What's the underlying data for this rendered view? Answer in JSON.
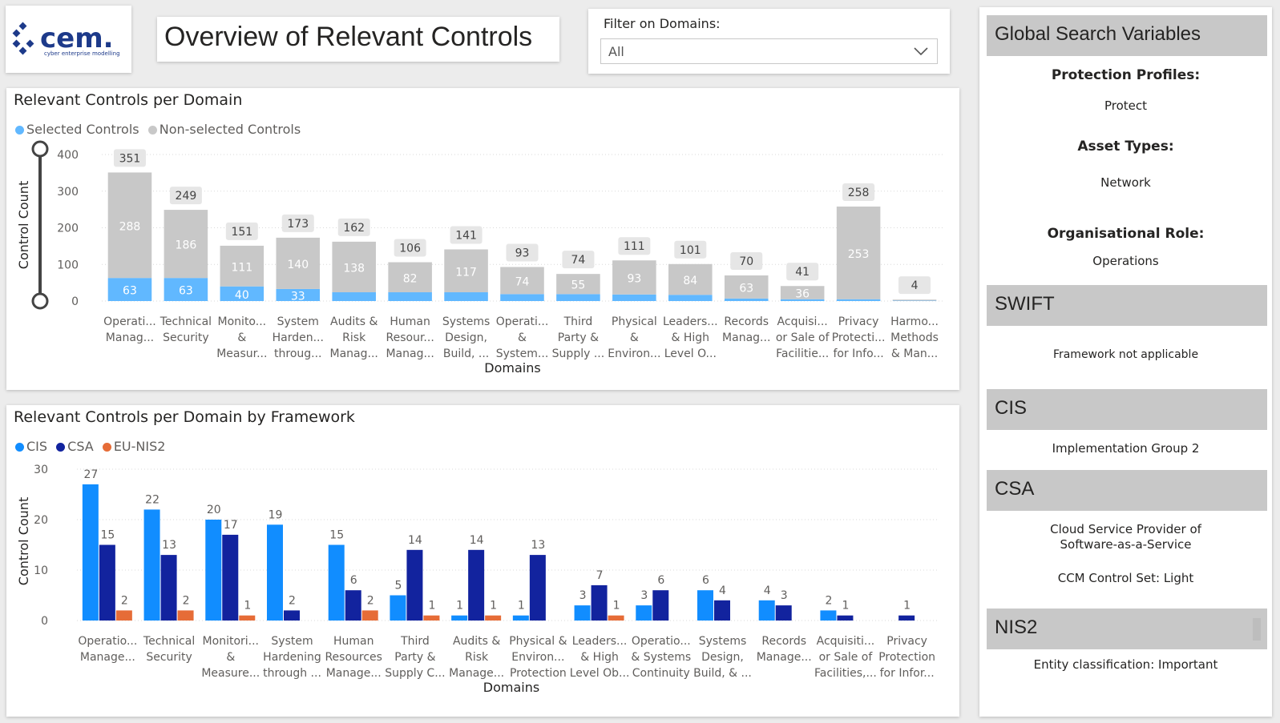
{
  "logo": {
    "name": "cem.",
    "tagline": "cyber enterprise modelling"
  },
  "page_title": "Overview of Relevant Controls",
  "filter": {
    "label": "Filter on Domains:",
    "value": "All"
  },
  "colors": {
    "selected": "#61b8ff",
    "nonselected": "#c8c8c8",
    "cis": "#118dff",
    "csa": "#12239e",
    "eunis2": "#e66c37"
  },
  "sidebar": {
    "title": "Global Search Variables",
    "protection_profiles_label": "Protection Profiles:",
    "protection_profiles_value": "Protect",
    "asset_types_label": "Asset Types:",
    "asset_types_value": "Network",
    "org_role_label": "Organisational Role:",
    "org_role_value": "Operations",
    "swift_title": "SWIFT",
    "swift_value": "Framework not applicable",
    "cis_title": "CIS",
    "cis_value": "Implementation Group 2",
    "csa_title": "CSA",
    "csa_value_1": "Cloud Service Provider of",
    "csa_value_2": "Software-as-a-Service",
    "csa_value_3": "CCM Control Set: Light",
    "nis2_title": "NIS2",
    "nis2_value": "Entity classification: Important"
  },
  "chart_data": [
    {
      "type": "bar",
      "stacked": true,
      "title": "Relevant Controls per Domain",
      "xlabel": "Domains",
      "ylabel": "Control Count",
      "ylim": [
        0,
        400
      ],
      "yticks": [
        0,
        100,
        200,
        300,
        400
      ],
      "grid": true,
      "legend": "top-left",
      "categories": [
        [
          "Operati...",
          "Manag..."
        ],
        [
          "Technical",
          "Security"
        ],
        [
          "Monito...",
          "&",
          "Measur..."
        ],
        [
          "System",
          "Harden...",
          "throug..."
        ],
        [
          "Audits &",
          "Risk",
          "Manag..."
        ],
        [
          "Human",
          "Resour...",
          "Manag..."
        ],
        [
          "Systems",
          "Design,",
          "Build, ..."
        ],
        [
          "Operati...",
          "&",
          "System..."
        ],
        [
          "Third",
          "Party &",
          "Supply ..."
        ],
        [
          "Physical",
          "&",
          "Environ..."
        ],
        [
          "Leaders...",
          "& High",
          "Level O..."
        ],
        [
          "Records",
          "Manag..."
        ],
        [
          "Acquisi...",
          "or Sale of",
          "Facilitie..."
        ],
        [
          "Privacy",
          "Protecti...",
          "for Info..."
        ],
        [
          "Harmo...",
          "Methods",
          "& Man..."
        ]
      ],
      "series": [
        {
          "name": "Selected Controls",
          "values": [
            63,
            63,
            40,
            33,
            24,
            24,
            24,
            19,
            19,
            18,
            17,
            7,
            5,
            5,
            1
          ],
          "labels": [
            "63",
            "63",
            "40",
            "33",
            "",
            "",
            "",
            "",
            "",
            "",
            "",
            "",
            "",
            "",
            ""
          ]
        },
        {
          "name": "Non-selected Controls",
          "values": [
            288,
            186,
            111,
            140,
            138,
            82,
            117,
            74,
            55,
            93,
            84,
            63,
            36,
            253,
            3
          ],
          "labels": [
            "288",
            "186",
            "111",
            "140",
            "138",
            "82",
            "117",
            "74",
            "55",
            "93",
            "84",
            "63",
            "36",
            "253",
            ""
          ]
        }
      ],
      "totals": [
        351,
        249,
        151,
        173,
        162,
        106,
        141,
        93,
        74,
        111,
        101,
        70,
        41,
        258,
        4
      ]
    },
    {
      "type": "bar",
      "stacked": false,
      "title": "Relevant Controls per Domain by Framework",
      "xlabel": "Domains",
      "ylabel": "Control Count",
      "ylim": [
        0,
        30
      ],
      "yticks": [
        0,
        10,
        20,
        30
      ],
      "grid": true,
      "legend": "top-left",
      "categories": [
        [
          "Operatio...",
          "Manage..."
        ],
        [
          "Technical",
          "Security"
        ],
        [
          "Monitori...",
          "&",
          "Measure..."
        ],
        [
          "System",
          "Hardening",
          "through ..."
        ],
        [
          "Human",
          "Resources",
          "Manage..."
        ],
        [
          "Third",
          "Party &",
          "Supply C..."
        ],
        [
          "Audits &",
          "Risk",
          "Manage..."
        ],
        [
          "Physical &",
          "Environ...",
          "Protection"
        ],
        [
          "Leaders...",
          "& High",
          "Level Ob..."
        ],
        [
          "Operatio...",
          "& Systems",
          "Continuity"
        ],
        [
          "Systems",
          "Design,",
          "Build, & ..."
        ],
        [
          "Records",
          "Manage..."
        ],
        [
          "Acquisiti...",
          "or Sale of",
          "Facilities,..."
        ],
        [
          "Privacy",
          "Protection",
          "for Infor..."
        ]
      ],
      "series": [
        {
          "name": "CIS",
          "values": [
            27,
            22,
            20,
            19,
            15,
            5,
            1,
            1,
            3,
            3,
            6,
            4,
            2,
            null
          ]
        },
        {
          "name": "CSA",
          "values": [
            15,
            13,
            17,
            2,
            6,
            14,
            14,
            13,
            7,
            6,
            4,
            3,
            1,
            1
          ]
        },
        {
          "name": "EU-NIS2",
          "values": [
            2,
            2,
            1,
            null,
            2,
            1,
            1,
            null,
            1,
            null,
            null,
            null,
            null,
            null
          ]
        }
      ]
    }
  ]
}
